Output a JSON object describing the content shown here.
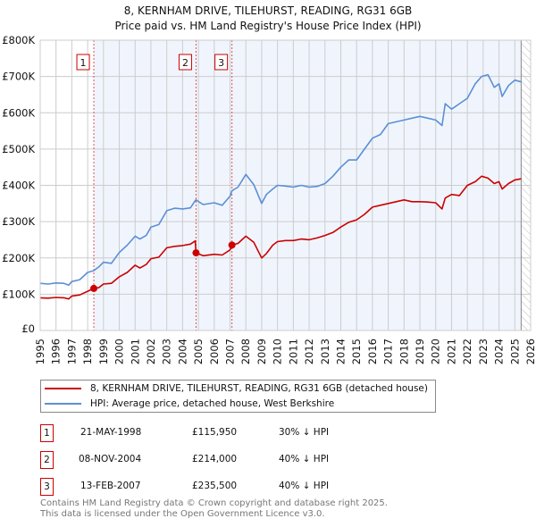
{
  "title": "8, KERNHAM DRIVE, TILEHURST, READING, RG31 6GB",
  "subtitle": "Price paid vs. HM Land Registry's House Price Index (HPI)",
  "chart_data": {
    "type": "line",
    "title": "8, KERNHAM DRIVE, TILEHURST, READING, RG31 6GB — Price paid vs. HM Land Registry's House Price Index (HPI)",
    "xlabel": "",
    "ylabel": "",
    "xlim": [
      1995,
      2026
    ],
    "ylim": [
      0,
      800000
    ],
    "x_ticks": [
      "1995",
      "1996",
      "1997",
      "1998",
      "1999",
      "2000",
      "2001",
      "2002",
      "2003",
      "2004",
      "2005",
      "2006",
      "2007",
      "2008",
      "2009",
      "2010",
      "2011",
      "2012",
      "2013",
      "2014",
      "2015",
      "2016",
      "2017",
      "2018",
      "2019",
      "2020",
      "2021",
      "2022",
      "2023",
      "2024",
      "2025",
      "2026"
    ],
    "y_ticks": [
      {
        "v": 0,
        "label": "£0"
      },
      {
        "v": 100000,
        "label": "£100K"
      },
      {
        "v": 200000,
        "label": "£200K"
      },
      {
        "v": 300000,
        "label": "£300K"
      },
      {
        "v": 400000,
        "label": "£400K"
      },
      {
        "v": 500000,
        "label": "£500K"
      },
      {
        "v": 600000,
        "label": "£600K"
      },
      {
        "v": 700000,
        "label": "£700K"
      },
      {
        "v": 800000,
        "label": "£800K"
      }
    ],
    "grid": true,
    "colors": {
      "price": "#cc0000",
      "hpi": "#5b8fd6",
      "plot_bg": "#f0f5fd",
      "grid": "#cccccc"
    },
    "series": [
      {
        "name": "8, KERNHAM DRIVE, TILEHURST, READING, RG31 6GB (detached house)",
        "color": "#cc0000",
        "x": [
          1995,
          1995.5,
          1996,
          1996.5,
          1996.8,
          1997,
          1997.5,
          1998,
          1998.39,
          1998.7,
          1999,
          1999.5,
          2000,
          2000.5,
          2001,
          2001.3,
          2001.7,
          2002,
          2002.5,
          2003,
          2003.5,
          2004,
          2004.5,
          2004.8,
          2004.85,
          2005.3,
          2006,
          2006.5,
          2007,
          2007.12,
          2007.5,
          2008,
          2008.5,
          2009,
          2009.3,
          2009.7,
          2010,
          2010.5,
          2011,
          2011.5,
          2012,
          2012.5,
          2013,
          2013.5,
          2014,
          2014.5,
          2015,
          2015.5,
          2016,
          2016.5,
          2017,
          2017.5,
          2018,
          2018.5,
          2019,
          2019.5,
          2020,
          2020.4,
          2020.6,
          2021,
          2021.5,
          2022,
          2022.5,
          2022.9,
          2023.3,
          2023.7,
          2024,
          2024.2,
          2024.6,
          2025,
          2025.4
        ],
        "y": [
          90000,
          89000,
          91000,
          90000,
          87000,
          95000,
          98000,
          108000,
          115950,
          118000,
          128000,
          130000,
          148000,
          160000,
          180000,
          172000,
          182000,
          198000,
          202000,
          228000,
          232000,
          234000,
          238000,
          247000,
          214000,
          206000,
          210000,
          208000,
          222000,
          235500,
          240000,
          260000,
          243000,
          200000,
          212000,
          235000,
          245000,
          248000,
          248000,
          252000,
          250000,
          255000,
          262000,
          270000,
          285000,
          298000,
          305000,
          320000,
          340000,
          345000,
          350000,
          355000,
          360000,
          355000,
          355000,
          354000,
          352000,
          335000,
          365000,
          375000,
          372000,
          400000,
          410000,
          425000,
          420000,
          405000,
          410000,
          390000,
          405000,
          415000,
          418000
        ]
      },
      {
        "name": "HPI: Average price, detached house, West Berkshire",
        "color": "#5b8fd6",
        "x": [
          1995,
          1995.5,
          1996,
          1996.5,
          1996.8,
          1997,
          1997.5,
          1998,
          1998.39,
          1998.7,
          1999,
          1999.5,
          2000,
          2000.5,
          2001,
          2001.3,
          2001.7,
          2002,
          2002.5,
          2003,
          2003.5,
          2004,
          2004.5,
          2004.8,
          2004.85,
          2005.3,
          2006,
          2006.5,
          2007,
          2007.12,
          2007.5,
          2008,
          2008.5,
          2009,
          2009.3,
          2009.7,
          2010,
          2010.5,
          2011,
          2011.5,
          2012,
          2012.5,
          2013,
          2013.5,
          2014,
          2014.5,
          2015,
          2015.5,
          2016,
          2016.5,
          2017,
          2017.5,
          2018,
          2018.5,
          2019,
          2019.5,
          2020,
          2020.4,
          2020.6,
          2021,
          2021.5,
          2022,
          2022.5,
          2022.9,
          2023.3,
          2023.7,
          2024,
          2024.2,
          2024.6,
          2025,
          2025.4
        ],
        "y": [
          130000,
          128000,
          131000,
          130000,
          125000,
          135000,
          140000,
          160000,
          165000,
          175000,
          188000,
          185000,
          215000,
          235000,
          260000,
          252000,
          262000,
          285000,
          292000,
          330000,
          337000,
          335000,
          338000,
          358000,
          360000,
          347000,
          352000,
          345000,
          370000,
          385000,
          395000,
          430000,
          402000,
          350000,
          375000,
          390000,
          400000,
          398000,
          395000,
          400000,
          395000,
          397000,
          405000,
          425000,
          450000,
          470000,
          470000,
          500000,
          530000,
          540000,
          570000,
          575000,
          580000,
          585000,
          590000,
          585000,
          580000,
          565000,
          625000,
          610000,
          625000,
          640000,
          680000,
          700000,
          705000,
          670000,
          680000,
          645000,
          675000,
          690000,
          685000
        ]
      }
    ],
    "sales": [
      {
        "id": "1",
        "x": 1998.39,
        "price": 115950
      },
      {
        "id": "2",
        "x": 2004.85,
        "price": 214000
      },
      {
        "id": "3",
        "x": 2007.12,
        "price": 235500
      }
    ],
    "projection_from": 2025.4,
    "legend_position": "bottom"
  },
  "legend": {
    "price_label": "8, KERNHAM DRIVE, TILEHURST, READING, RG31 6GB (detached house)",
    "hpi_label": "HPI: Average price, detached house, West Berkshire"
  },
  "table": [
    {
      "num": "1",
      "date": "21-MAY-1998",
      "price": "£115,950",
      "hpi": "30% ↓ HPI"
    },
    {
      "num": "2",
      "date": "08-NOV-2004",
      "price": "£214,000",
      "hpi": "40% ↓ HPI"
    },
    {
      "num": "3",
      "date": "13-FEB-2007",
      "price": "£235,500",
      "hpi": "40% ↓ HPI"
    }
  ],
  "footer": {
    "line1": "Contains HM Land Registry data © Crown copyright and database right 2025.",
    "line2": "This data is licensed under the Open Government Licence v3.0."
  }
}
